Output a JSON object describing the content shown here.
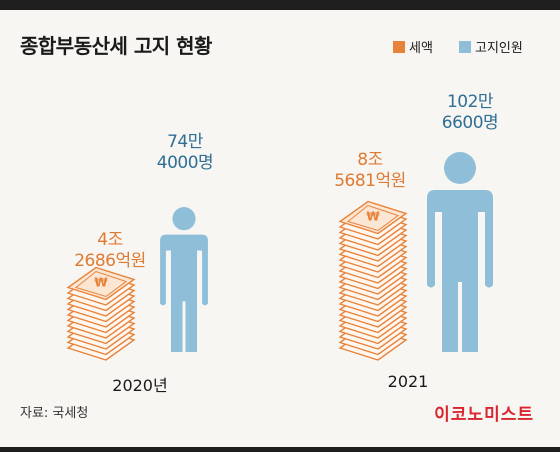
{
  "title": "종합부동산세 고지 현황",
  "legend": {
    "tax": "세액",
    "people": "고지인원"
  },
  "colors": {
    "tax": "#e8823a",
    "people": "#8fbfd8",
    "tax_text": "#e07a32",
    "people_text": "#2f6f96",
    "brand": "#d9262e"
  },
  "icons": {
    "tax": "banknote-stack-icon",
    "people": "person-icon"
  },
  "chart_data": {
    "type": "bar",
    "title": "종합부동산세 고지 현황",
    "categories": [
      "2020년",
      "2021"
    ],
    "series": [
      {
        "name": "세액",
        "unit": "억원",
        "values": [
          42686,
          85681
        ],
        "labels": [
          [
            "4조",
            "2686억원"
          ],
          [
            "8조",
            "5681억원"
          ]
        ]
      },
      {
        "name": "고지인원",
        "unit": "명",
        "values": [
          744000,
          1026600
        ],
        "labels": [
          [
            "74만",
            "4000명"
          ],
          [
            "102만",
            "6600명"
          ]
        ]
      }
    ]
  },
  "footer": {
    "source": "자료: 국세청",
    "brand": "이코노미스트"
  }
}
